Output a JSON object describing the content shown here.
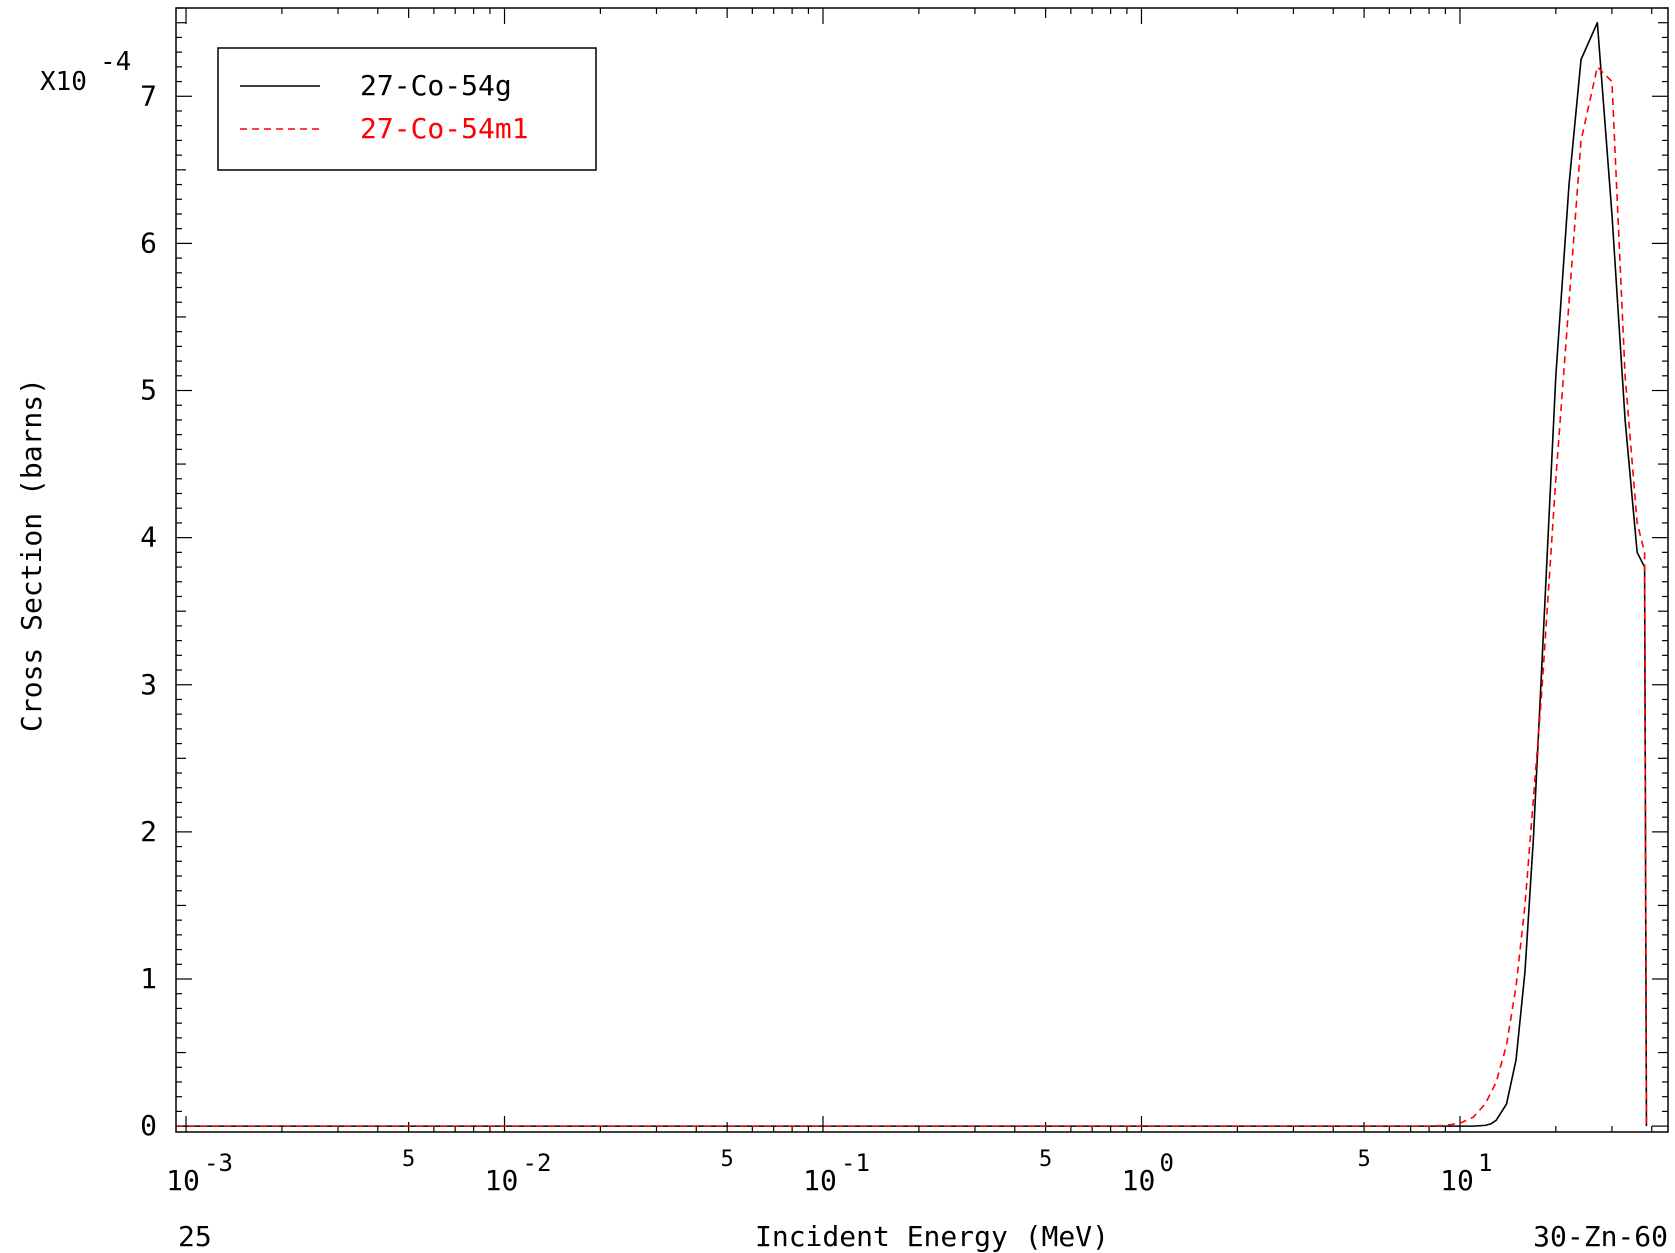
{
  "chart_data": {
    "type": "line",
    "xlabel": "Incident Energy (MeV)",
    "ylabel": "Cross Section (barns)",
    "x_scale": "log",
    "xlim": [
      0.00093,
      45
    ],
    "ylim": [
      -0.04,
      7.6
    ],
    "y_multiplier_label": "X10",
    "y_multiplier_exponent": "-4",
    "x_major_ticks": [
      {
        "value": 0.001,
        "base": "10",
        "exp": "-3"
      },
      {
        "value": 0.01,
        "base": "10",
        "exp": "-2"
      },
      {
        "value": 0.1,
        "base": "10",
        "exp": "-1"
      },
      {
        "value": 1,
        "base": "10",
        "exp": "0"
      },
      {
        "value": 10,
        "base": "10",
        "exp": "1"
      }
    ],
    "x_mid_ticks": [
      {
        "value": 0.005,
        "label": "5"
      },
      {
        "value": 0.05,
        "label": "5"
      },
      {
        "value": 0.5,
        "label": "5"
      },
      {
        "value": 5,
        "label": "5"
      }
    ],
    "y_ticks": [
      {
        "value": 0,
        "label": "0"
      },
      {
        "value": 1,
        "label": "1"
      },
      {
        "value": 2,
        "label": "2"
      },
      {
        "value": 3,
        "label": "3"
      },
      {
        "value": 4,
        "label": "4"
      },
      {
        "value": 5,
        "label": "5"
      },
      {
        "value": 6,
        "label": "6"
      },
      {
        "value": 7,
        "label": "7"
      }
    ],
    "corner_left_label": "25",
    "corner_right_label": "30-Zn-60",
    "legend_position": "top-left",
    "series": [
      {
        "name": "27-Co-54g",
        "color": "#000000",
        "dash": "solid",
        "x": [
          0.00093,
          10,
          11,
          12,
          12.5,
          13,
          14,
          15,
          16,
          17,
          18,
          20,
          22,
          24,
          27,
          30,
          33,
          36,
          38,
          38.5
        ],
        "y": [
          0,
          0,
          0,
          0.005,
          0.015,
          0.04,
          0.15,
          0.45,
          1.05,
          1.95,
          3.05,
          5.1,
          6.4,
          7.25,
          7.5,
          6.2,
          4.8,
          3.9,
          3.8,
          0
        ]
      },
      {
        "name": "27-Co-54m1",
        "color": "#ff0000",
        "dash": "dashed",
        "x": [
          0.00093,
          8,
          9,
          10,
          11,
          12,
          13,
          14,
          15,
          16,
          18,
          20,
          22,
          24,
          27,
          30,
          33,
          36,
          38,
          38.5
        ],
        "y": [
          0,
          0,
          0.005,
          0.02,
          0.06,
          0.15,
          0.3,
          0.55,
          0.95,
          1.5,
          2.9,
          4.4,
          5.6,
          6.7,
          7.2,
          7.1,
          5.1,
          4.1,
          3.9,
          0
        ]
      }
    ]
  }
}
